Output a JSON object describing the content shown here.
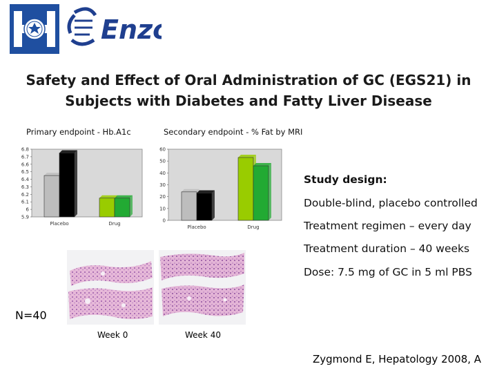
{
  "title_line1": "Safety and Effect of Oral Administration of GC (EGS21) in",
  "title_line2": "Subjects with Diabetes and Fatty Liver Disease",
  "logos": {
    "left": "hadassah-emblem",
    "right": "Enzo"
  },
  "chart_data": [
    {
      "type": "bar",
      "title": "Primary endpoint - Hb.A1c",
      "categories": [
        "Placebo",
        "Drug"
      ],
      "series": [
        {
          "values": [
            6.45,
            6.15
          ],
          "colors": [
            "#bdbdbd",
            "#99cc00"
          ]
        },
        {
          "values": [
            6.75,
            6.15
          ],
          "colors": [
            "#000000",
            "#22aa33"
          ]
        }
      ],
      "yticks": [
        "6.8",
        "6.7",
        "6.6",
        "6.5",
        "6.4",
        "6.3",
        "6.2",
        "6.1",
        "6",
        "5.9"
      ],
      "ylim": [
        5.9,
        6.8
      ],
      "grid": false,
      "plot_background": "#d9d9d9"
    },
    {
      "type": "bar",
      "title": "Secondary endpoint - % Fat by MRI",
      "categories": [
        "Placebo",
        "Drug"
      ],
      "series": [
        {
          "values": [
            24,
            53
          ],
          "colors": [
            "#bdbdbd",
            "#99cc00"
          ]
        },
        {
          "values": [
            23,
            46
          ],
          "colors": [
            "#000000",
            "#22aa33"
          ]
        }
      ],
      "yticks": [
        "60",
        "50",
        "40",
        "30",
        "20",
        "10",
        "0"
      ],
      "ylim": [
        0,
        60
      ],
      "grid": false,
      "plot_background": "#d9d9d9"
    }
  ],
  "study_design": {
    "heading": "Study design:",
    "items": [
      "Double-blind, placebo controlled",
      "Treatment regimen – every day",
      "Treatment duration – 40 weeks",
      "Dose: 7.5 mg of GC in 5 ml PBS"
    ]
  },
  "histology": {
    "week0_label": "Week 0",
    "week40_label": "Week 40"
  },
  "n_label": "N=40",
  "citation": "Zygmond E, Hepatology 2008, A"
}
